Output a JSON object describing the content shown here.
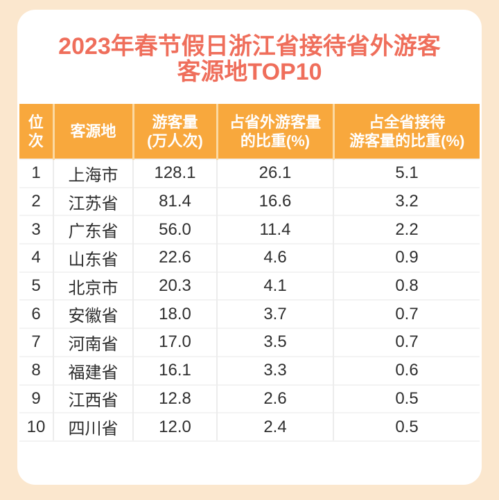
{
  "colors": {
    "page_background": "#FBE7CE",
    "card_background": "#FFFFFF",
    "title_text": "#EF6E5B",
    "header_background": "#F8A83D",
    "header_divider": "#FBD9A2",
    "header_text": "#FFFFFF",
    "body_text": "#2E2E2E"
  },
  "title": {
    "line1": "2023年春节假日浙江省接待省外游客",
    "line2": "客源地TOP10"
  },
  "table": {
    "headers": [
      "位\n次",
      "客源地",
      "游客量\n(万人次)",
      "占省外游客量\n的比重(%)",
      "占全省接待\n游客量的比重(%)"
    ],
    "rows": [
      {
        "rank": "1",
        "origin": "上海市",
        "visitors": "128.1",
        "share_out_of_province": "26.1",
        "share_total": "5.1"
      },
      {
        "rank": "2",
        "origin": "江苏省",
        "visitors": "81.4",
        "share_out_of_province": "16.6",
        "share_total": "3.2"
      },
      {
        "rank": "3",
        "origin": "广东省",
        "visitors": "56.0",
        "share_out_of_province": "11.4",
        "share_total": "2.2"
      },
      {
        "rank": "4",
        "origin": "山东省",
        "visitors": "22.6",
        "share_out_of_province": "4.6",
        "share_total": "0.9"
      },
      {
        "rank": "5",
        "origin": "北京市",
        "visitors": "20.3",
        "share_out_of_province": "4.1",
        "share_total": "0.8"
      },
      {
        "rank": "6",
        "origin": "安徽省",
        "visitors": "18.0",
        "share_out_of_province": "3.7",
        "share_total": "0.7"
      },
      {
        "rank": "7",
        "origin": "河南省",
        "visitors": "17.0",
        "share_out_of_province": "3.5",
        "share_total": "0.7"
      },
      {
        "rank": "8",
        "origin": "福建省",
        "visitors": "16.1",
        "share_out_of_province": "3.3",
        "share_total": "0.6"
      },
      {
        "rank": "9",
        "origin": "江西省",
        "visitors": "12.8",
        "share_out_of_province": "2.6",
        "share_total": "0.5"
      },
      {
        "rank": "10",
        "origin": "四川省",
        "visitors": "12.0",
        "share_out_of_province": "2.4",
        "share_total": "0.5"
      }
    ]
  },
  "chart_data": {
    "type": "table",
    "title": "2023年春节假日浙江省接待省外游客客源地TOP10",
    "columns": [
      "位次",
      "客源地",
      "游客量(万人次)",
      "占省外游客量的比重(%)",
      "占全省接待游客量的比重(%)"
    ],
    "rows": [
      [
        1,
        "上海市",
        128.1,
        26.1,
        5.1
      ],
      [
        2,
        "江苏省",
        81.4,
        16.6,
        3.2
      ],
      [
        3,
        "广东省",
        56.0,
        11.4,
        2.2
      ],
      [
        4,
        "山东省",
        22.6,
        4.6,
        0.9
      ],
      [
        5,
        "北京市",
        20.3,
        4.1,
        0.8
      ],
      [
        6,
        "安徽省",
        18.0,
        3.7,
        0.7
      ],
      [
        7,
        "河南省",
        17.0,
        3.5,
        0.7
      ],
      [
        8,
        "福建省",
        16.1,
        3.3,
        0.6
      ],
      [
        9,
        "江西省",
        12.8,
        2.6,
        0.5
      ],
      [
        10,
        "四川省",
        12.0,
        2.4,
        0.5
      ]
    ]
  }
}
